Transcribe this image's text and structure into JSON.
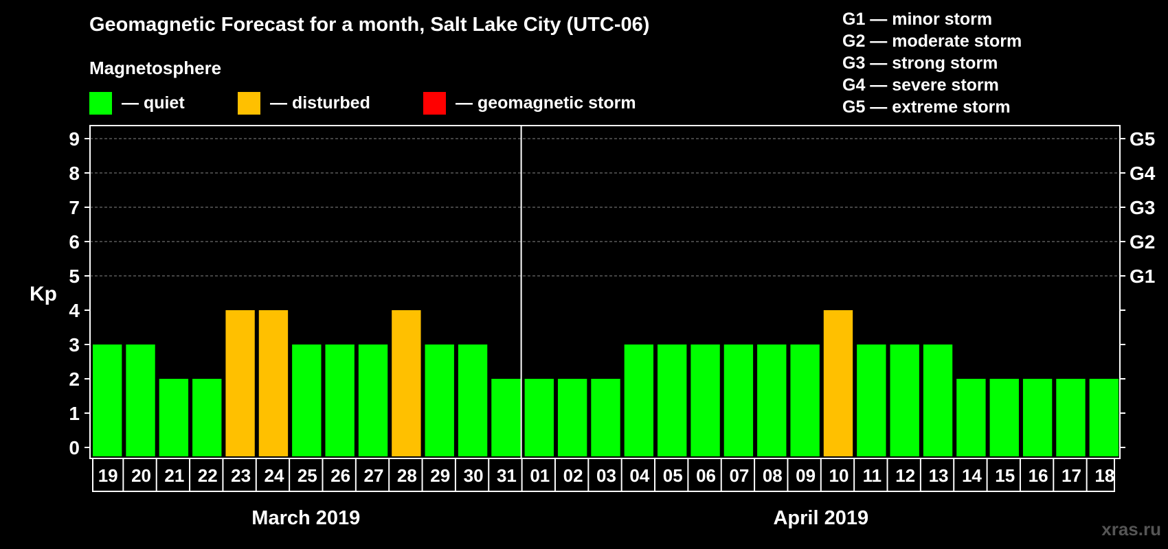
{
  "chart_data": {
    "type": "bar",
    "title": "Geomagnetic Forecast for a month, Salt Lake City (UTC-06)",
    "ylabel": "Kp",
    "ylim": [
      0,
      9
    ],
    "yticks": [
      "0",
      "1",
      "2",
      "3",
      "4",
      "5",
      "6",
      "7",
      "8",
      "9"
    ],
    "right_labels": [
      {
        "kp": 5,
        "label": "G1"
      },
      {
        "kp": 6,
        "label": "G2"
      },
      {
        "kp": 7,
        "label": "G3"
      },
      {
        "kp": 8,
        "label": "G4"
      },
      {
        "kp": 9,
        "label": "G5"
      }
    ],
    "categories": [
      "19",
      "20",
      "21",
      "22",
      "23",
      "24",
      "25",
      "26",
      "27",
      "28",
      "29",
      "30",
      "31",
      "01",
      "02",
      "03",
      "04",
      "05",
      "06",
      "07",
      "08",
      "09",
      "10",
      "11",
      "12",
      "13",
      "14",
      "15",
      "16",
      "17",
      "18"
    ],
    "values": [
      3,
      3,
      2,
      2,
      4,
      4,
      3,
      3,
      3,
      4,
      3,
      3,
      2,
      2,
      2,
      2,
      3,
      3,
      3,
      3,
      3,
      3,
      4,
      3,
      3,
      3,
      2,
      2,
      2,
      2,
      2
    ],
    "status": [
      "quiet",
      "quiet",
      "quiet",
      "quiet",
      "disturbed",
      "disturbed",
      "quiet",
      "quiet",
      "quiet",
      "disturbed",
      "quiet",
      "quiet",
      "quiet",
      "quiet",
      "quiet",
      "quiet",
      "quiet",
      "quiet",
      "quiet",
      "quiet",
      "quiet",
      "quiet",
      "disturbed",
      "quiet",
      "quiet",
      "quiet",
      "quiet",
      "quiet",
      "quiet",
      "quiet",
      "quiet"
    ],
    "months": [
      {
        "label": "March 2019",
        "start": 0,
        "count": 13
      },
      {
        "label": "April 2019",
        "start": 13,
        "count": 18
      }
    ],
    "grid": "dashed at Kp 5-9"
  },
  "magnetosphere": {
    "heading": "Magnetosphere",
    "legend": [
      {
        "label": "— quiet",
        "color": "#00ff00"
      },
      {
        "label": "— disturbed",
        "color": "#ffc000"
      },
      {
        "label": "— geomagnetic storm",
        "color": "#ff0000"
      }
    ]
  },
  "storm_scale": [
    "G1 — minor storm",
    "G2 — moderate storm",
    "G3 — strong storm",
    "G4 — severe storm",
    "G5 — extreme storm"
  ],
  "colors": {
    "quiet": "#00ff00",
    "disturbed": "#ffc000",
    "storm": "#ff0000",
    "axis": "#ffffff",
    "grid": "#888888"
  },
  "watermark": "xras.ru"
}
